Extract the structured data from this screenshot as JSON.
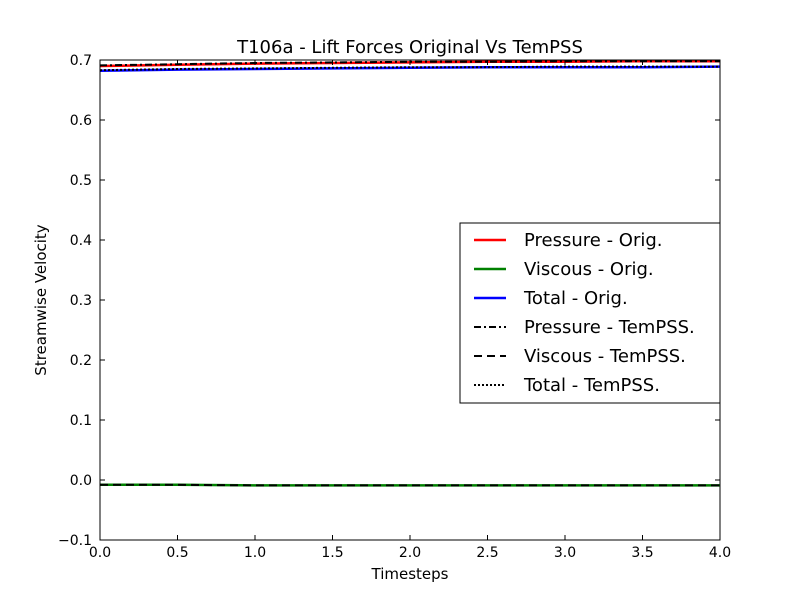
{
  "chart_data": {
    "type": "line",
    "title": "T106a - Lift Forces Original Vs TemPSS",
    "xlabel": "Timesteps",
    "ylabel": "Streamwise Velocity",
    "xlim": [
      0.0,
      4.0
    ],
    "ylim": [
      -0.1,
      0.7
    ],
    "xticks": [
      "0.0",
      "0.5",
      "1.0",
      "1.5",
      "2.0",
      "2.5",
      "3.0",
      "3.5",
      "4.0"
    ],
    "yticks": [
      "−0.1",
      "0.0",
      "0.1",
      "0.2",
      "0.3",
      "0.4",
      "0.5",
      "0.6",
      "0.7"
    ],
    "grid": false,
    "legend_position": "center-right",
    "series": [
      {
        "name": "Pressure - Orig.",
        "color": "#ff0000",
        "style": "solid",
        "x": [
          0.0,
          0.5,
          1.0,
          1.5,
          2.0,
          2.5,
          3.0,
          3.5,
          4.0
        ],
        "values": [
          0.69,
          0.692,
          0.694,
          0.695,
          0.696,
          0.697,
          0.697,
          0.698,
          0.698
        ]
      },
      {
        "name": "Viscous - Orig.",
        "color": "#008000",
        "style": "solid",
        "x": [
          0.0,
          0.5,
          1.0,
          1.5,
          2.0,
          2.5,
          3.0,
          3.5,
          4.0
        ],
        "values": [
          -0.008,
          -0.008,
          -0.009,
          -0.009,
          -0.009,
          -0.009,
          -0.009,
          -0.009,
          -0.009
        ]
      },
      {
        "name": "Total - Orig.",
        "color": "#0000ff",
        "style": "solid",
        "x": [
          0.0,
          0.5,
          1.0,
          1.5,
          2.0,
          2.5,
          3.0,
          3.5,
          4.0
        ],
        "values": [
          0.682,
          0.684,
          0.685,
          0.686,
          0.687,
          0.688,
          0.688,
          0.688,
          0.689
        ]
      },
      {
        "name": "Pressure - TemPSS.",
        "color": "#000000",
        "style": "dashdot",
        "x": [
          0.0,
          0.5,
          1.0,
          1.5,
          2.0,
          2.5,
          3.0,
          3.5,
          4.0
        ],
        "values": [
          0.691,
          0.693,
          0.695,
          0.696,
          0.697,
          0.697,
          0.698,
          0.698,
          0.698
        ]
      },
      {
        "name": "Viscous - TemPSS.",
        "color": "#000000",
        "style": "dashed",
        "x": [
          0.0,
          0.5,
          1.0,
          1.5,
          2.0,
          2.5,
          3.0,
          3.5,
          4.0
        ],
        "values": [
          -0.008,
          -0.008,
          -0.009,
          -0.009,
          -0.009,
          -0.009,
          -0.009,
          -0.009,
          -0.009
        ]
      },
      {
        "name": "Total - TemPSS.",
        "color": "#000000",
        "style": "dotted",
        "x": [
          0.0,
          0.5,
          1.0,
          1.5,
          2.0,
          2.5,
          3.0,
          3.5,
          4.0
        ],
        "values": [
          0.683,
          0.685,
          0.686,
          0.687,
          0.688,
          0.688,
          0.689,
          0.689,
          0.689
        ]
      }
    ]
  }
}
